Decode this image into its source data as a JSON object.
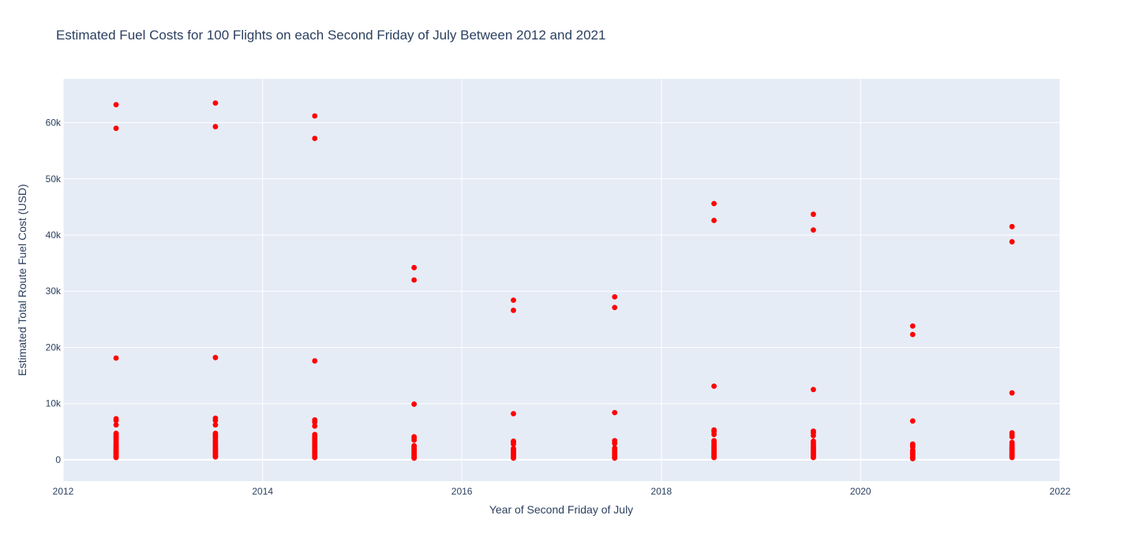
{
  "chart_data": {
    "type": "scatter",
    "title": "Estimated Fuel Costs for 100 Flights on each Second Friday of July Between 2012 and 2021",
    "xlabel": "Year of Second Friday of July",
    "ylabel": "Estimated Total Route Fuel Cost (USD)",
    "xlim": [
      "2012-01-01",
      "2022-01-01"
    ],
    "ylim": [
      -3800,
      67800
    ],
    "grid": true,
    "legend": "none",
    "x_ticks": [
      {
        "value": "2012-01-01",
        "label": "2012"
      },
      {
        "value": "2014-01-01",
        "label": "2014"
      },
      {
        "value": "2016-01-01",
        "label": "2016"
      },
      {
        "value": "2018-01-01",
        "label": "2018"
      },
      {
        "value": "2020-01-01",
        "label": "2020"
      },
      {
        "value": "2022-01-01",
        "label": "2022"
      }
    ],
    "y_ticks": [
      {
        "value": 0,
        "label": "0"
      },
      {
        "value": 10000,
        "label": "10k"
      },
      {
        "value": 20000,
        "label": "20k"
      },
      {
        "value": 30000,
        "label": "30k"
      },
      {
        "value": 40000,
        "label": "40k"
      },
      {
        "value": 50000,
        "label": "50k"
      },
      {
        "value": 60000,
        "label": "60k"
      }
    ],
    "marker_color": "#ff0000",
    "series": [
      {
        "x": "2012-07-13",
        "values": [
          63200,
          59000,
          18100,
          7300,
          7000,
          6200,
          4700,
          4400,
          4100,
          3900,
          3600,
          3300,
          3000,
          2800,
          2500,
          2300,
          2100,
          1900,
          1700,
          1500,
          1300,
          1100,
          900,
          700,
          500,
          400
        ]
      },
      {
        "x": "2013-07-12",
        "values": [
          63500,
          59300,
          18200,
          7400,
          7000,
          6200,
          4700,
          4400,
          4100,
          3800,
          3500,
          3200,
          2900,
          2700,
          2400,
          2200,
          2000,
          1800,
          1600,
          1400,
          1200,
          1000,
          800,
          600,
          500
        ]
      },
      {
        "x": "2014-07-11",
        "values": [
          61200,
          57200,
          17600,
          7100,
          6700,
          6000,
          4500,
          4200,
          3900,
          3600,
          3300,
          3000,
          2800,
          2500,
          2300,
          2100,
          1900,
          1700,
          1500,
          1300,
          1100,
          900,
          700,
          500,
          400
        ]
      },
      {
        "x": "2015-07-10",
        "values": [
          34200,
          32000,
          9900,
          4100,
          3800,
          3500,
          2500,
          2300,
          2100,
          1900,
          1700,
          1500,
          1300,
          1100,
          900,
          700,
          500,
          400,
          300
        ]
      },
      {
        "x": "2016-07-08",
        "values": [
          28400,
          26600,
          8200,
          3300,
          3100,
          2800,
          2000,
          1800,
          1600,
          1400,
          1200,
          1000,
          800,
          600,
          400,
          300
        ]
      },
      {
        "x": "2017-07-14",
        "values": [
          29000,
          27100,
          8400,
          3400,
          3100,
          2900,
          2100,
          1900,
          1700,
          1500,
          1300,
          1100,
          900,
          700,
          500,
          400,
          300
        ]
      },
      {
        "x": "2018-07-13",
        "values": [
          45600,
          42600,
          13100,
          5300,
          5000,
          4500,
          3400,
          3100,
          2800,
          2500,
          2300,
          2100,
          1800,
          1600,
          1400,
          1200,
          1000,
          800,
          600,
          400
        ]
      },
      {
        "x": "2019-07-12",
        "values": [
          43700,
          40900,
          12500,
          5100,
          4800,
          4300,
          3300,
          3000,
          2700,
          2400,
          2200,
          2000,
          1800,
          1600,
          1400,
          1200,
          1000,
          800,
          600,
          400
        ]
      },
      {
        "x": "2020-07-10",
        "values": [
          23800,
          22300,
          6900,
          2800,
          2600,
          2300,
          1700,
          1500,
          1300,
          1100,
          900,
          700,
          500,
          400,
          300,
          200
        ]
      },
      {
        "x": "2021-07-09",
        "values": [
          41500,
          38800,
          11900,
          4800,
          4500,
          4100,
          3100,
          2800,
          2500,
          2200,
          2000,
          1800,
          1600,
          1400,
          1200,
          1000,
          800,
          600,
          400
        ]
      }
    ]
  }
}
